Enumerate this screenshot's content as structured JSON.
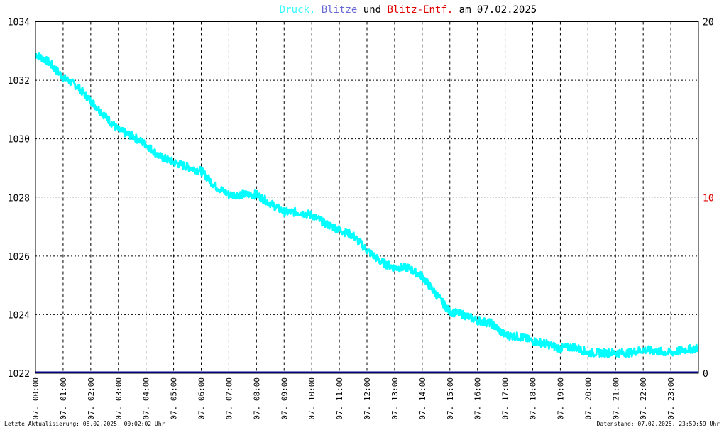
{
  "chart_data": {
    "type": "line",
    "title_parts": [
      {
        "text": "Druck,",
        "color": "#33ffff"
      },
      {
        "text": "Blitze",
        "color": "#6b6bd6"
      },
      {
        "text": "und",
        "color": "#000000"
      },
      {
        "text": "Blitz-Entf.",
        "color": "#e00000"
      },
      {
        "text": "am 07.02.2025",
        "color": "#000000"
      }
    ],
    "y_left": {
      "min": 1022,
      "max": 1034,
      "ticks": [
        "1022",
        "1024",
        "1026",
        "1028",
        "1030",
        "1032",
        "1034"
      ]
    },
    "y_right": {
      "min": 0,
      "max": 20,
      "ticks": [
        {
          "value": 0,
          "label": "0",
          "color": "#000000"
        },
        {
          "value": 10,
          "label": "10",
          "color": "#e00000"
        },
        {
          "value": 20,
          "label": "20",
          "color": "#000000"
        }
      ]
    },
    "x_hours": [
      0,
      24
    ],
    "x_tick_labels": [
      "07. 00:00",
      "07. 01:00",
      "07. 02:00",
      "07. 03:00",
      "07. 04:00",
      "07. 05:00",
      "07. 06:00",
      "07. 07:00",
      "07. 08:00",
      "07. 09:00",
      "07. 10:00",
      "07. 11:00",
      "07. 12:00",
      "07. 13:00",
      "07. 14:00",
      "07. 15:00",
      "07. 16:00",
      "07. 17:00",
      "07. 18:00",
      "07. 19:00",
      "07. 20:00",
      "07. 21:00",
      "07. 22:00",
      "07. 23:00"
    ],
    "series": [
      {
        "color": "#00ffff",
        "x_hours": [
          0.0,
          0.5,
          1.0,
          1.5,
          2.0,
          2.5,
          3.0,
          3.5,
          4.0,
          4.5,
          5.0,
          5.5,
          6.0,
          6.5,
          7.0,
          7.5,
          8.0,
          8.5,
          9.0,
          9.5,
          10.0,
          10.5,
          11.0,
          11.5,
          12.0,
          12.5,
          13.0,
          13.5,
          14.0,
          14.5,
          15.0,
          15.5,
          16.0,
          16.5,
          17.0,
          17.5,
          18.0,
          18.5,
          19.0,
          19.5,
          20.0,
          20.5,
          21.0,
          21.5,
          22.0,
          22.5,
          23.0,
          23.5,
          23.98
        ],
        "values": [
          1032.9,
          1032.6,
          1032.1,
          1031.8,
          1031.3,
          1030.8,
          1030.3,
          1030.1,
          1029.8,
          1029.4,
          1029.2,
          1029.05,
          1028.9,
          1028.4,
          1028.1,
          1028.1,
          1028.1,
          1027.8,
          1027.5,
          1027.5,
          1027.4,
          1027.1,
          1026.9,
          1026.7,
          1026.2,
          1025.8,
          1025.6,
          1025.6,
          1025.3,
          1024.7,
          1024.1,
          1024.0,
          1023.8,
          1023.7,
          1023.3,
          1023.25,
          1023.1,
          1023.0,
          1022.85,
          1022.9,
          1022.7,
          1022.7,
          1022.7,
          1022.7,
          1022.8,
          1022.75,
          1022.7,
          1022.8,
          1022.85
        ]
      },
      {
        "color": "#000080",
        "x_hours": [
          0,
          24
        ],
        "values": [
          1022,
          1022
        ]
      }
    ],
    "grid": true
  },
  "footer": {
    "left": "Letzte Aktualisierung: 08.02.2025, 00:02:02 Uhr",
    "right": "Datenstand: 07.02.2025, 23:59:59 Uhr"
  }
}
